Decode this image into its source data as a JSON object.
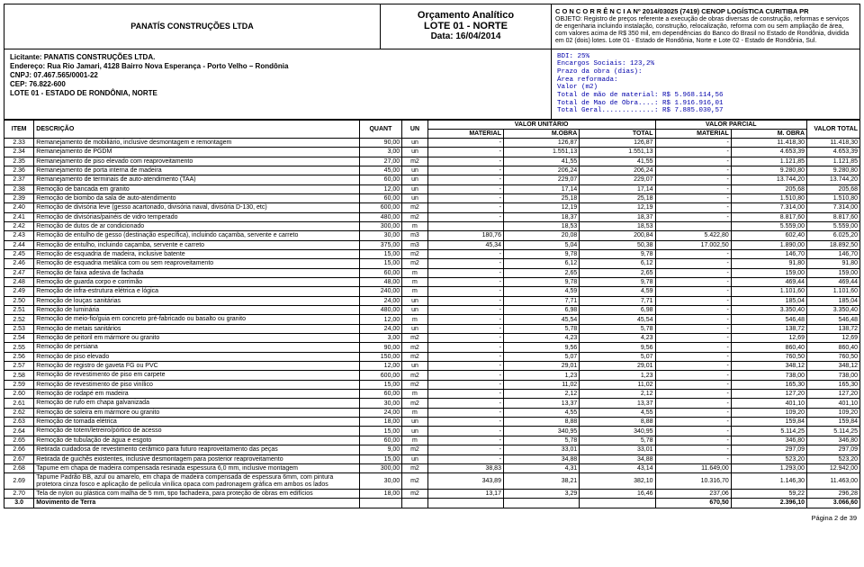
{
  "header": {
    "company": "PANATÍS CONSTRUÇÕES LTDA",
    "title1": "Orçamento Analítico",
    "title2": "LOTE 01 - NORTE",
    "title3": "Data: 16/04/2014",
    "concorrencia_hd": "C O N C O R R Ê N C I A Nº 2014/03025 (7419)   CENOP LOGÍSTICA CURITIBA PR",
    "objeto": "OBJETO: Registro de preços referente a execução de obras diversas de construção, reformas e serviços de engenharia incluindo instalação, construção, relocalização, reforma com ou sem ampliação de área, com valores acima de R$ 350 mil, em dependências do Banco do Brasil no Estado de Rondônia, dividida em 02 (dois) lotes. Lote 01 - Estado de Rondônia, Norte e Lote 02 - Estado de Rondônia, Sul."
  },
  "licitante": {
    "l1": "Licitante: PANATIS CONSTRUÇÕES LTDA.",
    "l2": "Endereço: Rua Rio Jamari, 4128 Bairro Nova Esperança - Porto Velho – Rondônia",
    "l3": "CNPJ: 07.467.565/0001-22",
    "l4": "CEP: 76.822-600",
    "l5": "LOTE 01 - ESTADO DE RONDÔNIA, NORTE"
  },
  "data_block": "BDI: 25%\nEncargos Sociais: 123,2%\nPrazo da obra (dias):\nÁrea reformada:\nValor (m2)\nTotal de mão de material: R$ 5.968.114,56\nTotal de Mao de Obra....: R$ 1.916.916,01\nTotal Geral.............: R$ 7.885.030,57",
  "table": {
    "headers": {
      "item": "ITEM",
      "descricao": "DESCRIÇÃO",
      "quant": "QUANT",
      "un": "UN",
      "valor_unit": "VALOR UNITÁRIO",
      "valor_parcial": "VALOR PARCIAL",
      "material": "MATERIAL",
      "mobra": "M.OBRA",
      "total": "TOTAL",
      "material2": "MATERIAL",
      "mobra2": "M. OBRA",
      "valor_total": "VALOR TOTAL"
    },
    "rows": [
      {
        "item": "2.33",
        "desc": "Remanejamento de mobiliário, inclusive desmontagem e remontagem",
        "quant": "90,00",
        "un": "un",
        "vm": "-",
        "vo": "126,87",
        "vt": "126,87",
        "pm": "-",
        "po": "11.418,30",
        "tot": "11.418,30"
      },
      {
        "item": "2.34",
        "desc": "Remanejamento de PGDM",
        "quant": "3,00",
        "un": "un",
        "vm": "-",
        "vo": "1.551,13",
        "vt": "1.551,13",
        "pm": "-",
        "po": "4.653,39",
        "tot": "4.653,39"
      },
      {
        "item": "2.35",
        "desc": "Remanejamento de piso elevado com reaproveitamento",
        "quant": "27,00",
        "un": "m2",
        "vm": "-",
        "vo": "41,55",
        "vt": "41,55",
        "pm": "-",
        "po": "1.121,85",
        "tot": "1.121,85"
      },
      {
        "item": "2.36",
        "desc": "Remanejamento de porta interna de madeira",
        "quant": "45,00",
        "un": "un",
        "vm": "-",
        "vo": "206,24",
        "vt": "206,24",
        "pm": "-",
        "po": "9.280,80",
        "tot": "9.280,80"
      },
      {
        "item": "2.37",
        "desc": "Remanejamento de terminais de auto-atendimento (TAA)",
        "quant": "60,00",
        "un": "un",
        "vm": "-",
        "vo": "229,07",
        "vt": "229,07",
        "pm": "-",
        "po": "13.744,20",
        "tot": "13.744,20"
      },
      {
        "item": "2.38",
        "desc": "Remoção de bancada em granito",
        "quant": "12,00",
        "un": "un",
        "vm": "-",
        "vo": "17,14",
        "vt": "17,14",
        "pm": "-",
        "po": "205,68",
        "tot": "205,68"
      },
      {
        "item": "2.39",
        "desc": "Remoção de biombo da sala de auto-atendimento",
        "quant": "60,00",
        "un": "un",
        "vm": "-",
        "vo": "25,18",
        "vt": "25,18",
        "pm": "-",
        "po": "1.510,80",
        "tot": "1.510,80"
      },
      {
        "item": "2.40",
        "desc": "Remoção de divisória leve (gesso acartonado, divisória naval, divisória D-130, etc)",
        "quant": "600,00",
        "un": "m2",
        "vm": "-",
        "vo": "12,19",
        "vt": "12,19",
        "pm": "-",
        "po": "7.314,00",
        "tot": "7.314,00"
      },
      {
        "item": "2.41",
        "desc": "Remoção de divisórias/painéis de vidro temperado",
        "quant": "480,00",
        "un": "m2",
        "vm": "-",
        "vo": "18,37",
        "vt": "18,37",
        "pm": "-",
        "po": "8.817,60",
        "tot": "8.817,60"
      },
      {
        "item": "2.42",
        "desc": "Remoção de dutos de ar condicionado",
        "quant": "300,00",
        "un": "m",
        "vm": "",
        "vo": "18,53",
        "vt": "18,53",
        "pm": "",
        "po": "5.559,00",
        "tot": "5.559,00"
      },
      {
        "item": "2.43",
        "desc": "Remoção de entulho de gesso (destinação específica), incluindo caçamba, servente e carreto",
        "quant": "30,00",
        "un": "m3",
        "vm": "180,76",
        "vo": "20,08",
        "vt": "200,84",
        "pm": "5.422,80",
        "po": "602,40",
        "tot": "6.025,20"
      },
      {
        "item": "2.44",
        "desc": "Remoção de entulho, incluindo caçamba, servente e carreto",
        "quant": "375,00",
        "un": "m3",
        "vm": "45,34",
        "vo": "5,04",
        "vt": "50,38",
        "pm": "17.002,50",
        "po": "1.890,00",
        "tot": "18.892,50"
      },
      {
        "item": "2.45",
        "desc": "Remoção de esquadria de madeira, inclusive batente",
        "quant": "15,00",
        "un": "m2",
        "vm": "-",
        "vo": "9,78",
        "vt": "9,78",
        "pm": "-",
        "po": "146,70",
        "tot": "146,70"
      },
      {
        "item": "2.46",
        "desc": "Remoção de esquadria metálica com ou sem reaproveitamento",
        "quant": "15,00",
        "un": "m2",
        "vm": "-",
        "vo": "6,12",
        "vt": "6,12",
        "pm": "-",
        "po": "91,80",
        "tot": "91,80"
      },
      {
        "item": "2.47",
        "desc": "Remoção de faixa adesiva de fachada",
        "quant": "60,00",
        "un": "m",
        "vm": "-",
        "vo": "2,65",
        "vt": "2,65",
        "pm": "-",
        "po": "159,00",
        "tot": "159,00"
      },
      {
        "item": "2.48",
        "desc": "Remoção de guarda corpo e corrimão",
        "quant": "48,00",
        "un": "m",
        "vm": "-",
        "vo": "9,78",
        "vt": "9,78",
        "pm": "-",
        "po": "469,44",
        "tot": "469,44"
      },
      {
        "item": "2.49",
        "desc": "Remoção de infra-estrutura elétrica e lógica",
        "quant": "240,00",
        "un": "m",
        "vm": "-",
        "vo": "4,59",
        "vt": "4,59",
        "pm": "-",
        "po": "1.101,60",
        "tot": "1.101,60"
      },
      {
        "item": "2.50",
        "desc": "Remoção de louças sanitárias",
        "quant": "24,00",
        "un": "un",
        "vm": "-",
        "vo": "7,71",
        "vt": "7,71",
        "pm": "-",
        "po": "185,04",
        "tot": "185,04"
      },
      {
        "item": "2.51",
        "desc": "Remoção de luminária",
        "quant": "480,00",
        "un": "un",
        "vm": "-",
        "vo": "6,98",
        "vt": "6,98",
        "pm": "-",
        "po": "3.350,40",
        "tot": "3.350,40"
      },
      {
        "item": "2.52",
        "desc": "Remoção de meio-fio/guia em concreto pré-fabricado ou basalto ou granito",
        "quant": "12,00",
        "un": "m",
        "vm": "-",
        "vo": "45,54",
        "vt": "45,54",
        "pm": "-",
        "po": "546,48",
        "tot": "546,48"
      },
      {
        "item": "2.53",
        "desc": "Remoção de metais sanitários",
        "quant": "24,00",
        "un": "un",
        "vm": "-",
        "vo": "5,78",
        "vt": "5,78",
        "pm": "-",
        "po": "138,72",
        "tot": "138,72"
      },
      {
        "item": "2.54",
        "desc": "Remoção de peitoril em mármore ou granito",
        "quant": "3,00",
        "un": "m2",
        "vm": "-",
        "vo": "4,23",
        "vt": "4,23",
        "pm": "-",
        "po": "12,69",
        "tot": "12,69"
      },
      {
        "item": "2.55",
        "desc": "Remoção de persiana",
        "quant": "90,00",
        "un": "m2",
        "vm": "-",
        "vo": "9,56",
        "vt": "9,56",
        "pm": "-",
        "po": "860,40",
        "tot": "860,40"
      },
      {
        "item": "2.56",
        "desc": "Remoção de piso elevado",
        "quant": "150,00",
        "un": "m2",
        "vm": "-",
        "vo": "5,07",
        "vt": "5,07",
        "pm": "-",
        "po": "760,50",
        "tot": "760,50"
      },
      {
        "item": "2.57",
        "desc": "Remoção de registro de gaveta FG ou PVC",
        "quant": "12,00",
        "un": "un",
        "vm": "-",
        "vo": "29,01",
        "vt": "29,01",
        "pm": "-",
        "po": "348,12",
        "tot": "348,12"
      },
      {
        "item": "2.58",
        "desc": "Remoção de revestimento de piso em carpete",
        "quant": "600,00",
        "un": "m2",
        "vm": "-",
        "vo": "1,23",
        "vt": "1,23",
        "pm": "-",
        "po": "738,00",
        "tot": "738,00"
      },
      {
        "item": "2.59",
        "desc": "Remoção de revestimento de piso vinílico",
        "quant": "15,00",
        "un": "m2",
        "vm": "-",
        "vo": "11,02",
        "vt": "11,02",
        "pm": "-",
        "po": "165,30",
        "tot": "165,30"
      },
      {
        "item": "2.60",
        "desc": "Remoção de rodapé em madeira",
        "quant": "60,00",
        "un": "m",
        "vm": "-",
        "vo": "2,12",
        "vt": "2,12",
        "pm": "-",
        "po": "127,20",
        "tot": "127,20"
      },
      {
        "item": "2.61",
        "desc": "Remoção de rufo em chapa galvanizada",
        "quant": "30,00",
        "un": "m2",
        "vm": "-",
        "vo": "13,37",
        "vt": "13,37",
        "pm": "-",
        "po": "401,10",
        "tot": "401,10"
      },
      {
        "item": "2.62",
        "desc": "Remoção de soleira em mármore ou granito",
        "quant": "24,00",
        "un": "m",
        "vm": "-",
        "vo": "4,55",
        "vt": "4,55",
        "pm": "-",
        "po": "109,20",
        "tot": "109,20"
      },
      {
        "item": "2.63",
        "desc": "Remoção de tomada elétrica",
        "quant": "18,00",
        "un": "un",
        "vm": "-",
        "vo": "8,88",
        "vt": "8,88",
        "pm": "-",
        "po": "159,84",
        "tot": "159,84"
      },
      {
        "item": "2.64",
        "desc": "Remoção de totem/letreiro/pórtico de acesso",
        "quant": "15,00",
        "un": "un",
        "vm": "-",
        "vo": "340,95",
        "vt": "340,95",
        "pm": "-",
        "po": "5.114,25",
        "tot": "5.114,25"
      },
      {
        "item": "2.65",
        "desc": "Remoção de tubulação de água e esgoto",
        "quant": "60,00",
        "un": "m",
        "vm": "-",
        "vo": "5,78",
        "vt": "5,78",
        "pm": "-",
        "po": "346,80",
        "tot": "346,80"
      },
      {
        "item": "2.66",
        "desc": "Retirada cuidadosa de revestimento cerâmico para futuro reaproveitamento das peças",
        "quant": "9,00",
        "un": "m2",
        "vm": "-",
        "vo": "33,01",
        "vt": "33,01",
        "pm": "-",
        "po": "297,09",
        "tot": "297,09"
      },
      {
        "item": "2.67",
        "desc": "Retirada de guichês existentes, inclusive desmontagem para posterior reaproveitamento",
        "quant": "15,00",
        "un": "un",
        "vm": "-",
        "vo": "34,88",
        "vt": "34,88",
        "pm": "-",
        "po": "523,20",
        "tot": "523,20"
      },
      {
        "item": "2.68",
        "desc": "Tapume em chapa de madeira compensada resinada espessura 6,0 mm, inclusive montagem",
        "quant": "300,00",
        "un": "m2",
        "vm": "38,83",
        "vo": "4,31",
        "vt": "43,14",
        "pm": "11.649,00",
        "po": "1.293,00",
        "tot": "12.942,00"
      },
      {
        "item": "2.69",
        "desc": "Tapume Padrão BB, azul ou amarelo, em chapa de madeira compensada de espessura 6mm, com pintura protetora cinza fosco e aplicação de película vinílica opaca com padronagem gráfica em ambos os lados",
        "quant": "30,00",
        "un": "m2",
        "vm": "343,89",
        "vo": "38,21",
        "vt": "382,10",
        "pm": "10.316,70",
        "po": "1.146,30",
        "tot": "11.463,00"
      },
      {
        "item": "2.70",
        "desc": "Tela de nylon ou plástica com malha de 5 mm, tipo fachadeira, para proteção de obras em edifícios",
        "quant": "18,00",
        "un": "m2",
        "vm": "13,17",
        "vo": "3,29",
        "vt": "16,46",
        "pm": "237,06",
        "po": "59,22",
        "tot": "296,28"
      }
    ],
    "section": {
      "item": "3.0",
      "desc": "Movimento de Terra",
      "quant": "",
      "un": "",
      "vm": "",
      "vo": "",
      "vt": "",
      "pm": "670,50",
      "po": "2.396,10",
      "tot": "3.066,60"
    }
  },
  "footer": "Página 2 de 39"
}
